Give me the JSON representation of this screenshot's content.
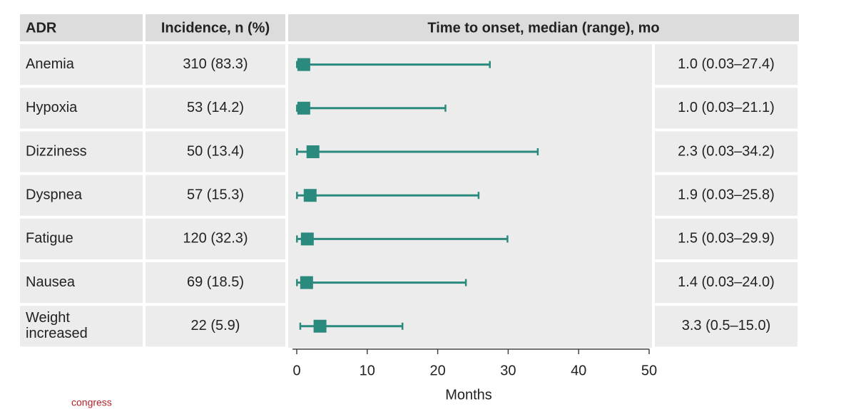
{
  "chart_data": {
    "type": "forest",
    "headers": [
      "ADR",
      "Incidence, n (%)",
      "Time to onset, median (range), mo"
    ],
    "categories": [
      "Anemia",
      "Hypoxia",
      "Dizziness",
      "Dyspnea",
      "Fatigue",
      "Nausea",
      "Weight increased"
    ],
    "incidence": [
      "310 (83.3)",
      "53 (14.2)",
      "50 (13.4)",
      "57 (15.3)",
      "120 (32.3)",
      "69 (18.5)",
      "22 (5.9)"
    ],
    "values": [
      1.0,
      1.0,
      2.3,
      1.9,
      1.5,
      1.4,
      3.3
    ],
    "min": [
      0.03,
      0.03,
      0.03,
      0.03,
      0.03,
      0.03,
      0.5
    ],
    "max": [
      27.4,
      21.1,
      34.2,
      25.8,
      29.9,
      24.0,
      15.0
    ],
    "value_labels": [
      "1.0 (0.03–27.4)",
      "1.0 (0.03–21.1)",
      "2.3 (0.03–34.2)",
      "1.9 (0.03–25.8)",
      "1.5 (0.03–29.9)",
      "1.4 (0.03–24.0)",
      "3.3 (0.5–15.0)"
    ],
    "xlim": [
      0,
      50
    ],
    "xticks": [
      0,
      10,
      20,
      30,
      40,
      50
    ],
    "xlabel": "Months",
    "color": "#2b8a7e",
    "footer": "congress"
  }
}
